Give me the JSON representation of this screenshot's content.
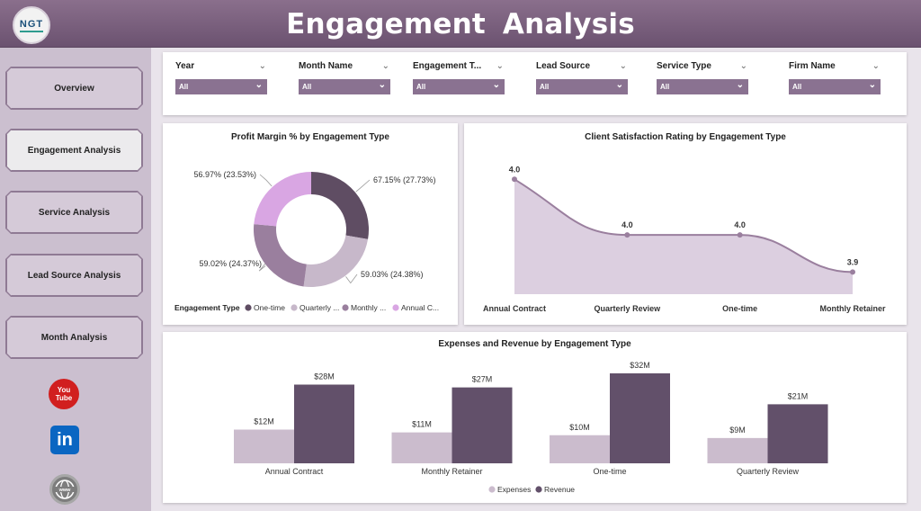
{
  "header": {
    "title": "Engagement  Analysis",
    "logo_text": "NGT"
  },
  "sidebar": {
    "items": [
      {
        "label": "Overview",
        "active": false
      },
      {
        "label": "Engagement Analysis",
        "active": true
      },
      {
        "label": "Service Analysis",
        "active": false
      },
      {
        "label": "Lead Source Analysis",
        "active": false
      },
      {
        "label": "Month Analysis",
        "active": false
      }
    ],
    "social": [
      "youtube-icon",
      "linkedin-icon",
      "website-icon"
    ],
    "youtube_text": "You Tube",
    "linkedin_text": "in"
  },
  "filters": [
    {
      "label": "Year",
      "value": "All"
    },
    {
      "label": "Month Name",
      "value": "All"
    },
    {
      "label": "Engagement T...",
      "value": "All"
    },
    {
      "label": "Lead Source",
      "value": "All"
    },
    {
      "label": "Service Type",
      "value": "All"
    },
    {
      "label": "Firm Name",
      "value": "All"
    }
  ],
  "colors": {
    "one_time": "#5f4d63",
    "quarterly": "#c7b8ca",
    "monthly": "#9a7f9e",
    "annual": "#d9a6e3",
    "expenses": "#cbbccd",
    "revenue": "#62506a"
  },
  "chart_data": [
    {
      "type": "pie",
      "title": "Profit Margin % by Engagement Type",
      "legend_title": "Engagement Type",
      "legend_labels": [
        "One-time",
        "Quarterly ...",
        "Monthly ...",
        "Annual C..."
      ],
      "slices": [
        {
          "name": "One-time",
          "label": "67.15% (27.73%)",
          "value": 67.15,
          "share": 27.73,
          "color": "#5f4d63"
        },
        {
          "name": "Quarterly Review",
          "label": "59.03% (24.38%)",
          "value": 59.03,
          "share": 24.38,
          "color": "#c7b8ca"
        },
        {
          "name": "Monthly Retainer",
          "label": "59.02% (24.37%)",
          "value": 59.02,
          "share": 24.37,
          "color": "#9a7f9e"
        },
        {
          "name": "Annual Contract",
          "label": "56.97% (23.53%)",
          "value": 56.97,
          "share": 23.53,
          "color": "#d9a6e3"
        }
      ],
      "legend_position": "bottom"
    },
    {
      "type": "area",
      "title": "Client Satisfaction Rating by Engagement Type",
      "categories": [
        "Annual Contract",
        "Quarterly Review",
        "One-time",
        "Monthly Retainer"
      ],
      "values": [
        4.02,
        3.96,
        3.96,
        3.92
      ],
      "value_labels": [
        "4.0",
        "4.0",
        "4.0",
        "3.9"
      ],
      "color": "#9a7f9e"
    },
    {
      "type": "bar",
      "title": "Expenses and Revenue by Engagement Type",
      "categories": [
        "Annual Contract",
        "Monthly Retainer",
        "One-time",
        "Quarterly Review"
      ],
      "series": [
        {
          "name": "Expenses",
          "values": [
            12,
            11,
            10,
            9
          ],
          "labels": [
            "$12M",
            "$11M",
            "$10M",
            "$9M"
          ],
          "color": "#cbbccd"
        },
        {
          "name": "Revenue",
          "values": [
            28,
            27,
            32,
            21
          ],
          "labels": [
            "$28M",
            "$27M",
            "$32M",
            "$21M"
          ],
          "color": "#62506a"
        }
      ],
      "legend_position": "bottom"
    }
  ]
}
